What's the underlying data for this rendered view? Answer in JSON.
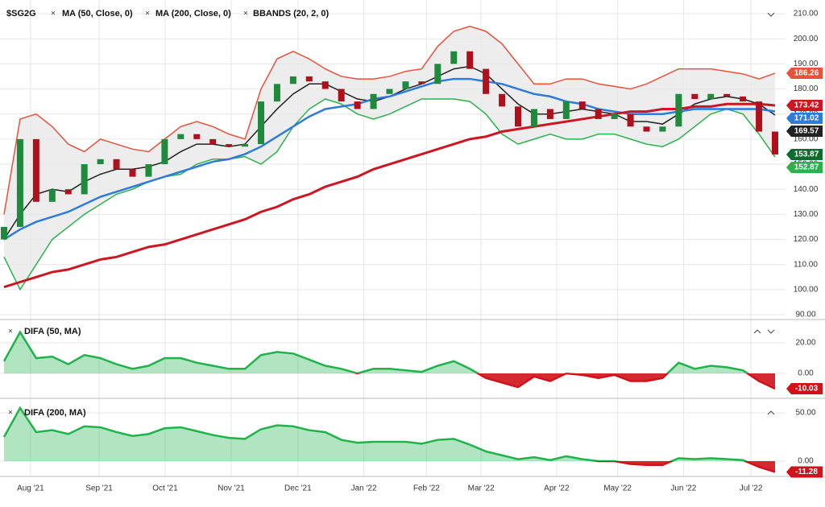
{
  "chart_data": [
    {
      "type": "candlestick",
      "title": "$SG2G",
      "up_color": "#1e8a3c",
      "down_color": "#b0101c",
      "close_label_color": "#0d6b2d",
      "open": [
        120,
        125,
        160,
        135,
        140,
        138,
        150,
        152,
        148,
        145,
        150,
        160,
        162,
        160,
        158,
        157,
        158,
        175,
        182,
        185,
        183,
        180,
        175,
        172,
        178,
        180,
        183,
        182,
        190,
        195,
        188,
        178,
        173,
        165,
        172,
        168,
        175,
        172,
        168,
        170,
        165,
        163,
        165,
        178,
        176,
        178,
        177,
        175,
        163
      ],
      "close": [
        125,
        160,
        135,
        140,
        138,
        150,
        152,
        148,
        145,
        150,
        160,
        162,
        160,
        158,
        157,
        158,
        175,
        182,
        185,
        183,
        180,
        175,
        172,
        178,
        180,
        183,
        182,
        190,
        195,
        188,
        178,
        173,
        165,
        172,
        168,
        175,
        172,
        168,
        170,
        165,
        163,
        165,
        178,
        176,
        178,
        177,
        175,
        163,
        153.87
      ],
      "series": [
        {
          "name": "MA (50, Close, 0)",
          "color": "#2f7bd8",
          "values": [
            120,
            124,
            127,
            129,
            131,
            134,
            137,
            139,
            141,
            143,
            145,
            147,
            149,
            151,
            152,
            154,
            157,
            161,
            165,
            169,
            172,
            173,
            174,
            176,
            177,
            179,
            181,
            183,
            184,
            184,
            183,
            182,
            180,
            178,
            177,
            175,
            174,
            172,
            171,
            170,
            170,
            170,
            171,
            172,
            172,
            172,
            172,
            172,
            171.02
          ]
        },
        {
          "name": "MA (200, Close, 0)",
          "color": "#cc1722",
          "values": [
            101,
            103,
            105,
            107,
            108,
            110,
            112,
            113,
            115,
            117,
            118,
            120,
            122,
            124,
            126,
            128,
            131,
            133,
            136,
            138,
            141,
            143,
            145,
            148,
            150,
            152,
            154,
            156,
            158,
            160,
            161,
            163,
            164,
            165,
            166,
            167,
            168,
            169,
            170,
            171,
            171,
            172,
            172,
            173,
            173,
            174,
            174,
            174,
            173.42
          ]
        }
      ],
      "bbands": {
        "name": "BBANDS (20, 2, 0)",
        "upper_color": "#e8513a",
        "middle_color": "#222222",
        "lower_color": "#2bb24c",
        "fill": "#e8e8e8",
        "upper": [
          130,
          168,
          170,
          165,
          158,
          155,
          160,
          158,
          156,
          155,
          160,
          165,
          167,
          165,
          162,
          160,
          180,
          192,
          195,
          192,
          188,
          185,
          184,
          184,
          185,
          187,
          188,
          197,
          203,
          205,
          203,
          198,
          190,
          182,
          182,
          184,
          184,
          182,
          181,
          180,
          182,
          185,
          188,
          188,
          188,
          187,
          186,
          184,
          186.26
        ],
        "middle": [
          120,
          130,
          138,
          140,
          139,
          143,
          146,
          148,
          148,
          149,
          151,
          155,
          158,
          158,
          157,
          158,
          165,
          172,
          178,
          182,
          182,
          179,
          176,
          175,
          177,
          180,
          182,
          185,
          188,
          189,
          186,
          180,
          174,
          170,
          170,
          171,
          172,
          171,
          170,
          167,
          167,
          166,
          170,
          174,
          176,
          177,
          176,
          174,
          169.57
        ],
        "lower": [
          113,
          100,
          110,
          120,
          125,
          130,
          134,
          138,
          140,
          143,
          145,
          146,
          150,
          152,
          152,
          153,
          150,
          155,
          165,
          172,
          176,
          174,
          170,
          168,
          170,
          173,
          176,
          176,
          176,
          175,
          170,
          162,
          158,
          160,
          162,
          160,
          160,
          162,
          162,
          160,
          158,
          157,
          160,
          165,
          170,
          172,
          170,
          162,
          152.87
        ]
      },
      "ylim": [
        88.4,
        212.9
      ],
      "grid": true,
      "yticks": [
        {
          "value": 90,
          "label": "90.00"
        },
        {
          "value": 100,
          "label": "100.00"
        },
        {
          "value": 110,
          "label": "110.00"
        },
        {
          "value": 120,
          "label": "120.00"
        },
        {
          "value": 130,
          "label": "130.00"
        },
        {
          "value": 140,
          "label": "140.00"
        },
        {
          "value": 150,
          "label": "150.00"
        },
        {
          "value": 160,
          "label": "160.00"
        },
        {
          "value": 170,
          "label": "170.00"
        },
        {
          "value": 180,
          "label": "180.00"
        },
        {
          "value": 190,
          "label": "190.00"
        },
        {
          "value": 200,
          "label": "200.00"
        },
        {
          "value": 210,
          "label": "210.00"
        }
      ]
    },
    {
      "type": "area",
      "title": "DIFA (50, MA)",
      "pos_color": "#1fb34a",
      "neg_color": "#d0121b",
      "values": [
        8,
        27,
        10,
        11,
        6,
        12,
        10,
        6,
        3,
        5,
        10,
        10,
        7,
        5,
        3,
        3,
        12,
        14,
        13,
        9,
        5,
        3,
        0,
        3,
        3,
        2,
        1,
        5,
        8,
        3,
        -3,
        -6,
        -9,
        -2,
        -5,
        0,
        -1,
        -3,
        -1,
        -5,
        -5,
        -3,
        7,
        3,
        5,
        4,
        2,
        -5,
        -10.03
      ],
      "ylim": [
        -13.7,
        33.7
      ],
      "yticks": [
        {
          "value": 20,
          "label": "20.00"
        },
        {
          "value": 0,
          "label": "0.00"
        }
      ]
    },
    {
      "type": "area",
      "title": "DIFA (200, MA)",
      "pos_color": "#1fb34a",
      "neg_color": "#d0121b",
      "values": [
        25,
        55,
        30,
        32,
        28,
        36,
        35,
        30,
        26,
        28,
        34,
        35,
        31,
        27,
        24,
        23,
        33,
        37,
        36,
        32,
        30,
        22,
        19,
        20,
        20,
        20,
        18,
        22,
        23,
        17,
        10,
        6,
        2,
        4,
        1,
        5,
        2,
        0,
        0,
        -3,
        -4,
        -4,
        3,
        2,
        3,
        2,
        1,
        -6,
        -11.28
      ],
      "ylim": [
        -14.2,
        60.8
      ],
      "yticks": [
        {
          "value": 50,
          "label": "50.00"
        },
        {
          "value": 0,
          "label": "0.00"
        }
      ],
      "xlim": [
        0,
        48
      ],
      "xticks": [
        {
          "value": 1.65,
          "label": "Aug '21"
        },
        {
          "value": 5.92,
          "label": "Sep '21"
        },
        {
          "value": 10.03,
          "label": "Oct '21"
        },
        {
          "value": 14.14,
          "label": "Nov '21"
        },
        {
          "value": 18.3,
          "label": "Dec '21"
        },
        {
          "value": 22.4,
          "label": "Jan '22"
        },
        {
          "value": 26.3,
          "label": "Feb '22"
        },
        {
          "value": 29.7,
          "label": "Mar '22"
        },
        {
          "value": 34.4,
          "label": "Apr '22"
        },
        {
          "value": 38.2,
          "label": "May '22"
        },
        {
          "value": 42.3,
          "label": "Jun '22"
        },
        {
          "value": 46.5,
          "label": "Jul '22"
        }
      ]
    }
  ]
}
